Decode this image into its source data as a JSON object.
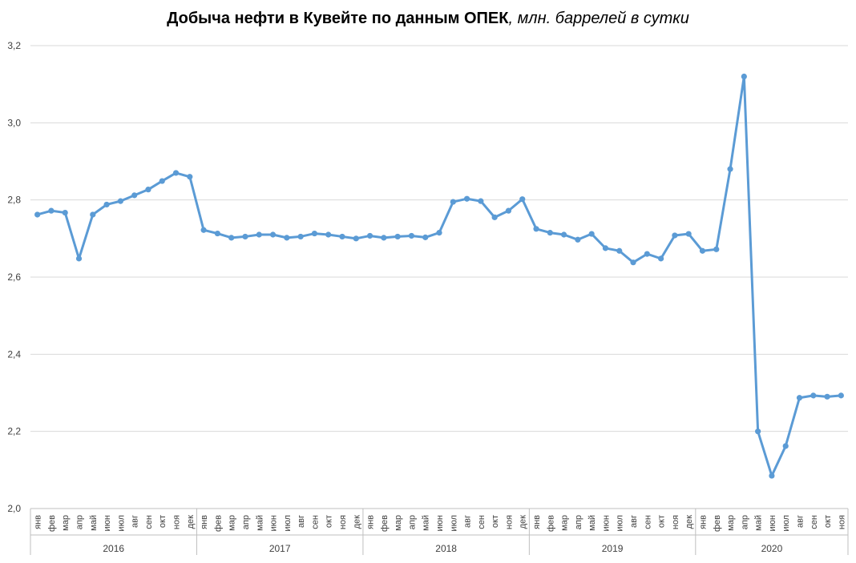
{
  "title": {
    "main": "Добыча нефти в Кувейте по данным ОПЕК",
    "sub": ", млн. баррелей в сутки"
  },
  "chart_data": {
    "type": "line",
    "title": "Добыча нефти в Кувейте по данным ОПЕК, млн. баррелей в сутки",
    "xlabel": "",
    "ylabel": "",
    "ylim": [
      2.0,
      3.2
    ],
    "yticks": [
      "2,0",
      "2,2",
      "2,4",
      "2,6",
      "2,8",
      "3,0",
      "3,2"
    ],
    "ytick_values": [
      2.0,
      2.2,
      2.4,
      2.6,
      2.8,
      3.0,
      3.2
    ],
    "grid": true,
    "line_color": "#5b9bd5",
    "month_labels": [
      "янв",
      "фев",
      "мар",
      "апр",
      "май",
      "июн",
      "июл",
      "авг",
      "сен",
      "окт",
      "ноя",
      "дек"
    ],
    "years": [
      {
        "label": "2016",
        "months": 12
      },
      {
        "label": "2017",
        "months": 12
      },
      {
        "label": "2018",
        "months": 12
      },
      {
        "label": "2019",
        "months": 12
      },
      {
        "label": "2020",
        "months": 11
      }
    ],
    "series": [
      {
        "values": [
          2.762,
          2.772,
          2.767,
          2.648,
          2.762,
          2.788,
          2.797,
          2.812,
          2.827,
          2.849,
          2.87,
          2.86,
          2.722,
          2.713,
          2.702,
          2.705,
          2.71,
          2.71,
          2.702,
          2.705,
          2.713,
          2.71,
          2.705,
          2.7,
          2.707,
          2.702,
          2.705,
          2.707,
          2.703,
          2.715,
          2.795,
          2.803,
          2.797,
          2.755,
          2.772,
          2.802,
          2.725,
          2.715,
          2.71,
          2.697,
          2.712,
          2.675,
          2.668,
          2.638,
          2.66,
          2.648,
          2.708,
          2.712,
          2.668,
          2.672,
          2.88,
          3.12,
          2.2,
          2.085,
          2.162,
          2.287,
          2.293,
          2.29,
          2.293
        ]
      }
    ]
  }
}
